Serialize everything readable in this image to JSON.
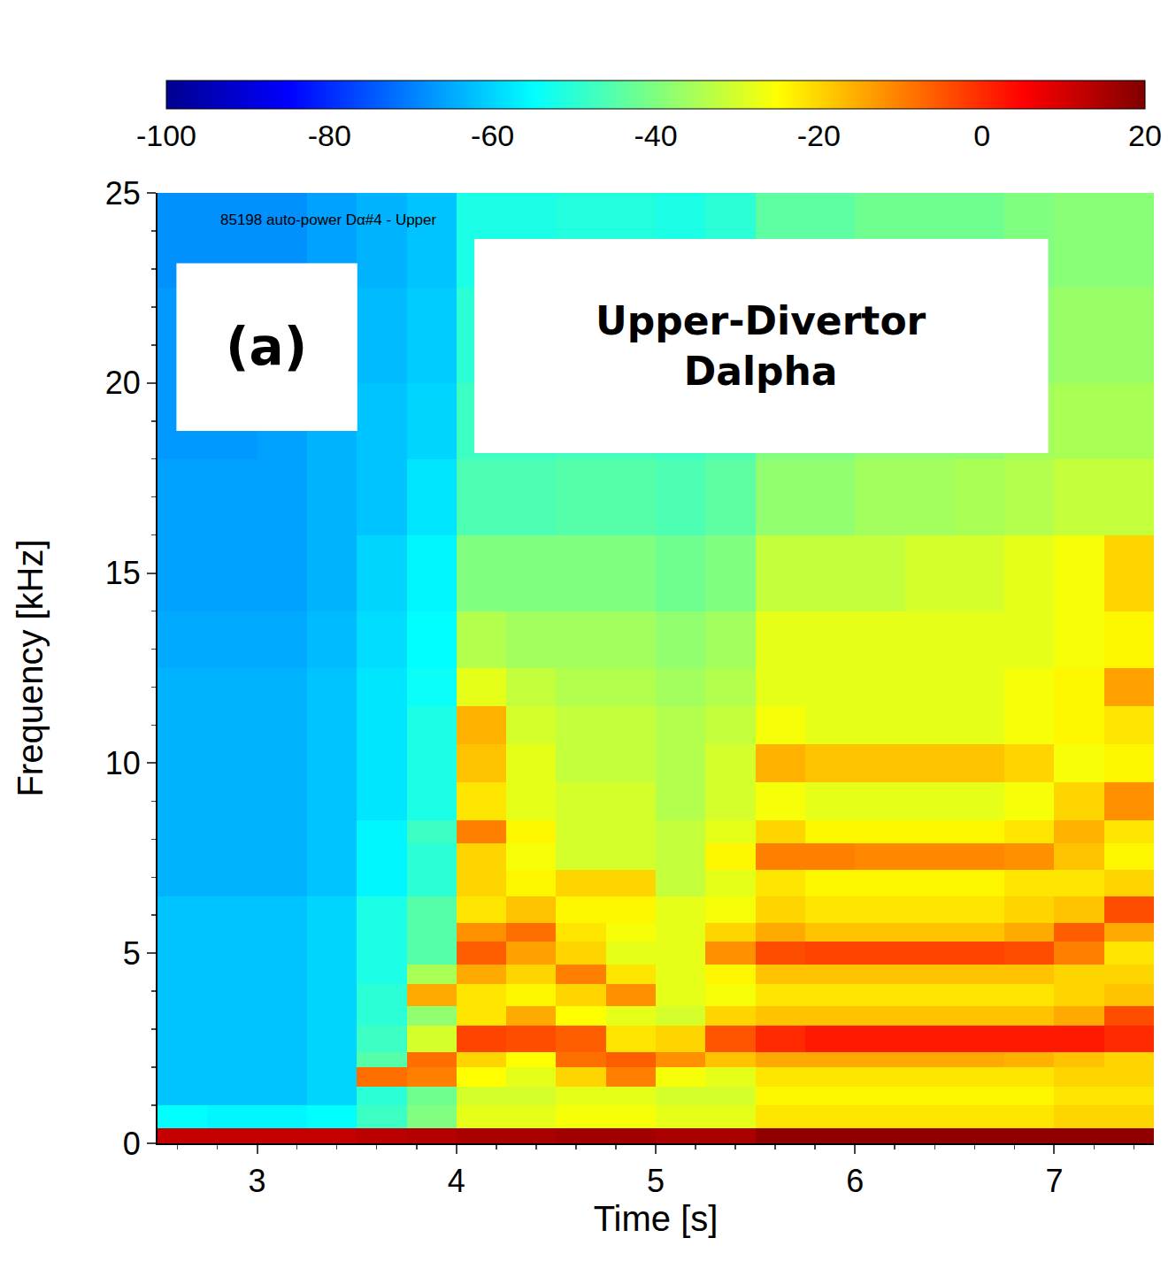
{
  "chart_data": {
    "type": "heatmap",
    "annotations": [
      "85198 auto-power Dα#4 - Upper",
      "(a)",
      "Upper-Divertor Dalpha"
    ],
    "x_label": "Time [s]",
    "y_label": "Frequency [kHz]",
    "x": [
      2.5,
      2.75,
      3,
      3.25,
      3.5,
      3.75,
      4,
      4.25,
      4.5,
      4.75,
      5,
      5.25,
      5.5,
      5.75,
      6,
      6.25,
      6.5,
      6.75,
      7,
      7.25,
      7.5
    ],
    "y": [
      0,
      0.4,
      1,
      1.5,
      2,
      2.4,
      3.1,
      3.6,
      4.2,
      4.7,
      5.3,
      5.8,
      6.5,
      7.2,
      7.9,
      8.5,
      9.5,
      10.5,
      11.5,
      12.5,
      14,
      16,
      18,
      20,
      22.5,
      25
    ],
    "z": [
      [
        12,
        12,
        12,
        12,
        13,
        14,
        15,
        15,
        16,
        16,
        15,
        15,
        18,
        18,
        18,
        18,
        18,
        18,
        18,
        18
      ],
      [
        -55,
        -56,
        -56,
        -55,
        -48,
        -40,
        -28,
        -28,
        -26,
        -26,
        -28,
        -28,
        -22,
        -22,
        -22,
        -22,
        -22,
        -22,
        -20,
        -20
      ],
      [
        -62,
        -62,
        -62,
        -60,
        -50,
        -42,
        -30,
        -30,
        -28,
        -28,
        -30,
        -30,
        -24,
        -24,
        -24,
        -24,
        -24,
        -24,
        -22,
        -22
      ],
      [
        -62,
        -62,
        -62,
        -60,
        -8,
        -10,
        -25,
        -28,
        -20,
        -10,
        -26,
        -28,
        -22,
        -22,
        -22,
        -22,
        -22,
        -22,
        -20,
        -20
      ],
      [
        -62,
        -62,
        -62,
        -60,
        -45,
        -8,
        -20,
        -25,
        -8,
        -6,
        -12,
        -18,
        -15,
        -15,
        -15,
        -15,
        -15,
        -16,
        -18,
        -20
      ],
      [
        -62,
        -62,
        -62,
        -60,
        -48,
        -30,
        -3,
        -4,
        -6,
        -22,
        -20,
        -5,
        0,
        2,
        2,
        2,
        2,
        2,
        2,
        0
      ],
      [
        -62,
        -62,
        -62,
        -60,
        -50,
        -38,
        -22,
        -15,
        -25,
        -28,
        -30,
        -20,
        -18,
        -18,
        -18,
        -18,
        -18,
        -18,
        -15,
        -4
      ],
      [
        -62,
        -62,
        -62,
        -60,
        -50,
        -15,
        -22,
        -24,
        -20,
        -12,
        -28,
        -26,
        -22,
        -22,
        -22,
        -22,
        -22,
        -22,
        -20,
        -18
      ],
      [
        -62,
        -62,
        -62,
        -60,
        -52,
        -35,
        -15,
        -20,
        -10,
        -22,
        -28,
        -24,
        -18,
        -18,
        -18,
        -18,
        -18,
        -18,
        -20,
        -20
      ],
      [
        -62,
        -62,
        -62,
        -60,
        -52,
        -45,
        -6,
        -14,
        -20,
        -28,
        -28,
        -12,
        -4,
        -3,
        -3,
        -3,
        -3,
        -4,
        -10,
        -22
      ],
      [
        -62,
        -62,
        -62,
        -60,
        -52,
        -45,
        -12,
        -8,
        -22,
        -26,
        -28,
        -20,
        -15,
        -18,
        -18,
        -18,
        -18,
        -15,
        -6,
        -15
      ],
      [
        -62,
        -62,
        -62,
        -60,
        -52,
        -45,
        -22,
        -18,
        -24,
        -24,
        -28,
        -26,
        -20,
        -22,
        -22,
        -22,
        -22,
        -20,
        -18,
        -4
      ],
      [
        -64,
        -64,
        -64,
        -62,
        -56,
        -50,
        -20,
        -24,
        -20,
        -20,
        -32,
        -28,
        -22,
        -24,
        -24,
        -24,
        -24,
        -22,
        -22,
        -20
      ],
      [
        -64,
        -64,
        -64,
        -62,
        -56,
        -50,
        -20,
        -26,
        -30,
        -30,
        -32,
        -24,
        -10,
        -10,
        -11,
        -11,
        -11,
        -12,
        -18,
        -24
      ],
      [
        -64,
        -64,
        -64,
        -62,
        -56,
        -48,
        -10,
        -24,
        -30,
        -30,
        -32,
        -28,
        -20,
        -24,
        -24,
        -24,
        -24,
        -22,
        -16,
        -22
      ],
      [
        -64,
        -64,
        -64,
        -62,
        -58,
        -52,
        -22,
        -28,
        -30,
        -30,
        -34,
        -30,
        -26,
        -28,
        -28,
        -28,
        -28,
        -26,
        -20,
        -12
      ],
      [
        -64,
        -64,
        -64,
        -62,
        -58,
        -52,
        -18,
        -28,
        -32,
        -32,
        -34,
        -30,
        -16,
        -18,
        -18,
        -18,
        -18,
        -20,
        -26,
        -24
      ],
      [
        -64,
        -64,
        -64,
        -62,
        -58,
        -52,
        -16,
        -30,
        -32,
        -32,
        -34,
        -32,
        -26,
        -28,
        -28,
        -28,
        -28,
        -26,
        -24,
        -22
      ],
      [
        -64,
        -64,
        -64,
        -62,
        -58,
        -54,
        -28,
        -32,
        -34,
        -34,
        -36,
        -34,
        -28,
        -28,
        -28,
        -28,
        -28,
        -26,
        -24,
        -14
      ],
      [
        -65,
        -65,
        -65,
        -63,
        -59,
        -55,
        -34,
        -36,
        -36,
        -36,
        -38,
        -36,
        -28,
        -28,
        -28,
        -28,
        -28,
        -28,
        -26,
        -24
      ],
      [
        -66,
        -66,
        -66,
        -64,
        -60,
        -56,
        -40,
        -40,
        -40,
        -40,
        -42,
        -40,
        -32,
        -32,
        -32,
        -30,
        -30,
        -28,
        -26,
        -20
      ],
      [
        -66,
        -66,
        -66,
        -64,
        -62,
        -58,
        -46,
        -46,
        -45,
        -45,
        -46,
        -44,
        -38,
        -38,
        -36,
        -36,
        -35,
        -34,
        -32,
        -32
      ],
      [
        -67,
        -67,
        -66,
        -64,
        -62,
        -60,
        -48,
        -48,
        -47,
        -47,
        -48,
        -46,
        -40,
        -40,
        -38,
        -38,
        -38,
        -36,
        -35,
        -35
      ],
      [
        -67,
        -67,
        -67,
        -65,
        -63,
        -61,
        -50,
        -50,
        -49,
        -49,
        -50,
        -48,
        -42,
        -42,
        -40,
        -40,
        -40,
        -38,
        -37,
        -37
      ],
      [
        -68,
        -68,
        -68,
        -66,
        -64,
        -62,
        -52,
        -52,
        -51,
        -51,
        -52,
        -50,
        -44,
        -44,
        -42,
        -42,
        -42,
        -40,
        -39,
        -39
      ]
    ],
    "xlim": [
      2.5,
      7.5
    ],
    "xticks": [
      3,
      4,
      5,
      6,
      7
    ],
    "ylim": [
      0,
      25
    ],
    "yticks": [
      0,
      5,
      10,
      15,
      20,
      25
    ],
    "zlim": [
      -100,
      20
    ],
    "zticks": [
      -100,
      -80,
      -60,
      -40,
      -20,
      0,
      20
    ]
  }
}
